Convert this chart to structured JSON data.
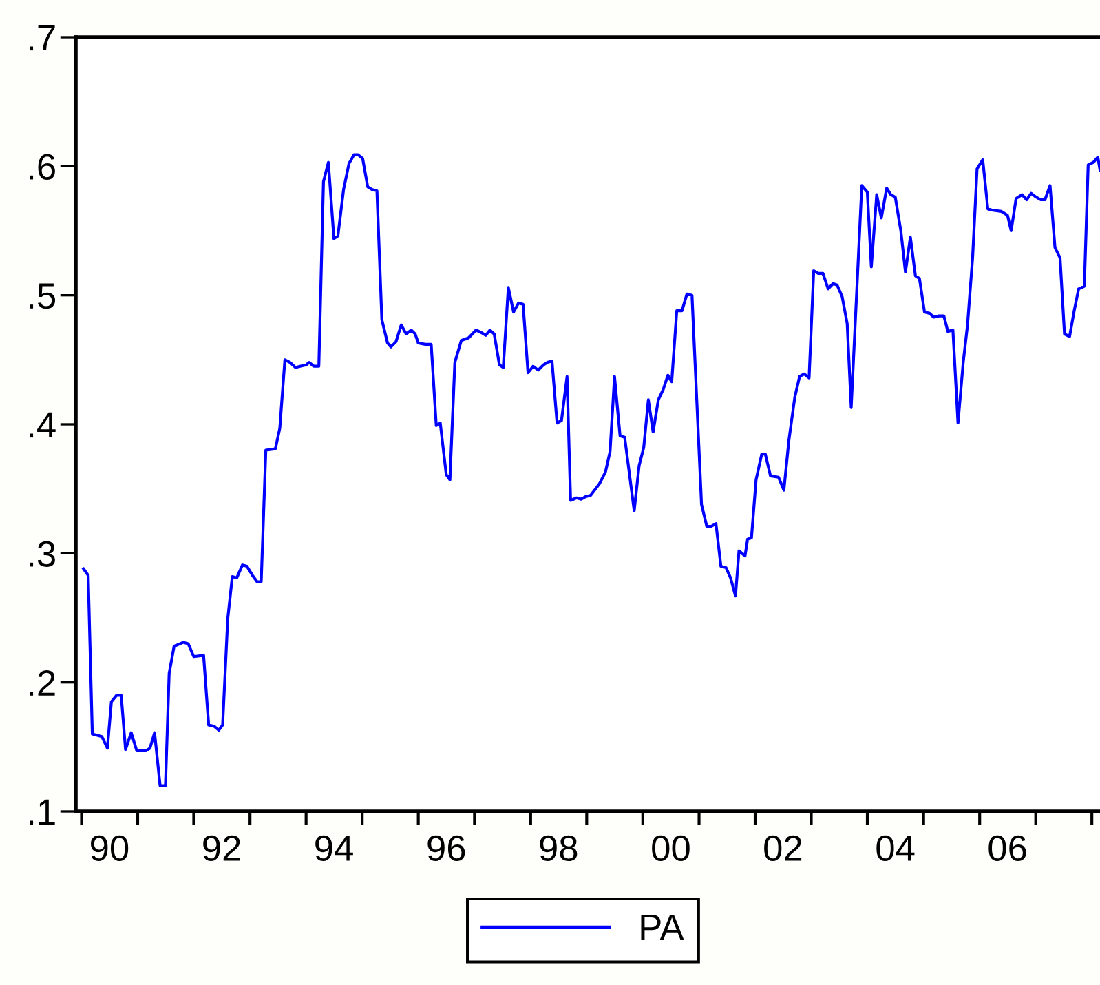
{
  "chart_data": {
    "type": "line",
    "x": [
      "1990-01-14",
      "1990-02-13",
      "1990-03-12",
      "1990-05-13",
      "1990-06-18",
      "1990-07-14",
      "1990-08-17",
      "1990-09-16",
      "1990-10-14",
      "1990-11-20",
      "1990-12-26",
      "1991-02-23",
      "1991-03-22",
      "1991-04-21",
      "1991-05-27",
      "1991-07-01",
      "1991-07-25",
      "1991-08-26",
      "1991-10-24",
      "1991-11-26",
      "1992-01-01",
      "1992-03-05",
      "1992-04-07",
      "1992-05-13",
      "1992-06-12",
      "1992-07-07",
      "1992-08-09",
      "1992-09-08",
      "1992-10-07",
      "1992-11-13",
      "1992-12-12",
      "1993-01-17",
      "1993-02-16",
      "1993-03-15",
      "1993-04-14",
      "1993-06-15",
      "1993-07-14",
      "1993-08-16",
      "1993-09-18",
      "1993-10-24",
      "1993-11-23",
      "1994-01-01",
      "1994-01-21",
      "1994-02-20",
      "1994-03-25",
      "1994-04-24",
      "1994-05-26",
      "1994-07-01",
      "1994-07-27",
      "1994-09-02",
      "1994-10-07",
      "1994-11-09",
      "1994-12-05",
      "1995-01-04",
      "1995-02-06",
      "1995-03-05",
      "1995-04-07",
      "1995-05-09",
      "1995-06-15",
      "1995-07-07",
      "1995-08-09",
      "1995-09-12",
      "1995-10-14",
      "1995-11-16",
      "1995-12-12",
      "1996-01-01",
      "1996-02-16",
      "1996-03-25",
      "1996-04-27",
      "1996-05-23",
      "1996-07-01",
      "1996-07-25",
      "1996-08-26",
      "1996-10-07",
      "1996-11-23",
      "1997-01-11",
      "1997-02-16",
      "1997-03-15",
      "1997-04-11",
      "1997-05-09",
      "1997-06-12",
      "1997-07-07",
      "1997-08-09",
      "1997-09-12",
      "1997-10-14",
      "1997-11-13",
      "1997-12-15",
      "1998-01-17",
      "1998-02-20",
      "1998-03-25",
      "1998-04-21",
      "1998-05-20",
      "1998-06-22",
      "1998-07-21",
      "1998-08-26",
      "1998-09-18",
      "1998-10-27",
      "1998-11-26",
      "1998-12-26",
      "1999-01-27",
      "1999-03-25",
      "1999-05-03",
      "1999-06-02",
      "1999-07-01",
      "1999-08-06",
      "1999-09-05",
      "1999-11-06",
      "1999-12-08",
      "2000-01-07",
      "2000-02-06",
      "2000-03-08",
      "2000-04-11",
      "2000-05-13",
      "2000-06-12",
      "2000-07-07",
      "2000-08-09",
      "2000-09-12",
      "2000-10-14",
      "2000-11-16",
      "2001-01-17",
      "2001-02-20",
      "2001-03-22",
      "2001-04-21",
      "2001-05-23",
      "2001-06-25",
      "2001-07-25",
      "2001-08-26",
      "2001-09-18",
      "2001-10-27",
      "2001-11-13",
      "2001-12-08",
      "2002-01-07",
      "2002-02-13",
      "2002-03-08",
      "2002-04-11",
      "2002-06-02",
      "2002-07-07",
      "2002-08-09",
      "2002-09-16",
      "2002-10-17",
      "2002-11-16",
      "2002-12-18",
      "2003-01-17",
      "2003-02-16",
      "2003-03-18",
      "2003-04-21",
      "2003-05-23",
      "2003-06-18",
      "2003-07-21",
      "2003-08-23",
      "2003-09-18",
      "2003-11-26",
      "2004-01-01",
      "2004-01-27",
      "2004-03-02",
      "2004-04-01",
      "2004-05-06",
      "2004-06-02",
      "2004-07-01",
      "2004-08-06",
      "2004-09-05",
      "2004-10-07",
      "2004-11-09",
      "2004-12-05",
      "2005-01-07",
      "2005-02-09",
      "2005-03-08",
      "2005-04-11",
      "2005-05-13",
      "2005-06-08",
      "2005-07-11",
      "2005-08-13",
      "2005-09-16",
      "2005-10-14",
      "2005-11-16",
      "2005-12-15",
      "2006-01-21",
      "2006-02-23",
      "2006-03-22",
      "2006-05-23",
      "2006-07-01",
      "2006-07-25",
      "2006-08-26",
      "2006-10-04",
      "2006-11-03",
      "2006-12-02",
      "2007-01-04",
      "2007-02-03",
      "2007-03-02",
      "2007-04-04",
      "2007-05-06",
      "2007-06-08",
      "2007-07-07",
      "2007-08-09",
      "2007-09-08",
      "2007-10-07",
      "2007-11-13",
      "2007-12-08",
      "2008-01-11",
      "2008-02-09",
      "2008-02-23"
    ],
    "series": [
      {
        "name": "PA",
        "color": "#0000ff",
        "values": [
          0.288,
          0.283,
          0.16,
          0.158,
          0.149,
          0.185,
          0.19,
          0.19,
          0.148,
          0.161,
          0.147,
          0.147,
          0.149,
          0.161,
          0.12,
          0.12,
          0.207,
          0.228,
          0.231,
          0.23,
          0.22,
          0.221,
          0.167,
          0.166,
          0.163,
          0.167,
          0.249,
          0.282,
          0.281,
          0.291,
          0.29,
          0.283,
          0.278,
          0.278,
          0.38,
          0.381,
          0.397,
          0.45,
          0.448,
          0.444,
          0.445,
          0.446,
          0.448,
          0.445,
          0.445,
          0.588,
          0.603,
          0.544,
          0.546,
          0.582,
          0.602,
          0.609,
          0.609,
          0.606,
          0.584,
          0.582,
          0.581,
          0.481,
          0.463,
          0.46,
          0.464,
          0.477,
          0.47,
          0.473,
          0.47,
          0.463,
          0.462,
          0.462,
          0.399,
          0.401,
          0.361,
          0.357,
          0.448,
          0.465,
          0.467,
          0.473,
          0.471,
          0.469,
          0.473,
          0.47,
          0.446,
          0.444,
          0.506,
          0.487,
          0.494,
          0.493,
          0.44,
          0.445,
          0.442,
          0.446,
          0.448,
          0.449,
          0.401,
          0.403,
          0.437,
          0.341,
          0.343,
          0.342,
          0.344,
          0.345,
          0.354,
          0.363,
          0.379,
          0.437,
          0.391,
          0.39,
          0.333,
          0.368,
          0.382,
          0.419,
          0.394,
          0.419,
          0.427,
          0.438,
          0.433,
          0.488,
          0.488,
          0.501,
          0.5,
          0.338,
          0.321,
          0.321,
          0.323,
          0.29,
          0.289,
          0.281,
          0.267,
          0.302,
          0.298,
          0.311,
          0.312,
          0.357,
          0.377,
          0.377,
          0.36,
          0.359,
          0.349,
          0.388,
          0.421,
          0.437,
          0.439,
          0.436,
          0.519,
          0.517,
          0.517,
          0.505,
          0.509,
          0.508,
          0.499,
          0.478,
          0.413,
          0.585,
          0.58,
          0.522,
          0.578,
          0.56,
          0.583,
          0.578,
          0.576,
          0.55,
          0.518,
          0.545,
          0.515,
          0.513,
          0.487,
          0.486,
          0.483,
          0.484,
          0.484,
          0.472,
          0.473,
          0.401,
          0.448,
          0.477,
          0.529,
          0.598,
          0.605,
          0.567,
          0.566,
          0.565,
          0.562,
          0.55,
          0.575,
          0.578,
          0.574,
          0.579,
          0.576,
          0.574,
          0.574,
          0.585,
          0.537,
          0.529,
          0.47,
          0.468,
          0.488,
          0.505,
          0.507,
          0.601,
          0.603,
          0.607,
          0.597
        ]
      }
    ],
    "xlim": [
      "1989-11-24",
      "2008-02-23"
    ],
    "xticks": [
      {
        "value": "1990-01-01",
        "label": null
      },
      {
        "value": "1991-01-01",
        "label": null
      },
      {
        "value": "1992-01-01",
        "label": null
      },
      {
        "value": "1993-01-01",
        "label": null
      },
      {
        "value": "1994-01-01",
        "label": null
      },
      {
        "value": "1995-01-01",
        "label": null
      },
      {
        "value": "1996-01-01",
        "label": null
      },
      {
        "value": "1997-01-01",
        "label": null
      },
      {
        "value": "1998-01-01",
        "label": null
      },
      {
        "value": "1999-01-01",
        "label": null
      },
      {
        "value": "2000-01-01",
        "label": null
      },
      {
        "value": "2001-01-01",
        "label": null
      },
      {
        "value": "2002-01-01",
        "label": null
      },
      {
        "value": "2003-01-01",
        "label": null
      },
      {
        "value": "2004-01-01",
        "label": null
      },
      {
        "value": "2005-01-01",
        "label": null
      },
      {
        "value": "2006-01-01",
        "label": null
      },
      {
        "value": "2007-01-01",
        "label": null
      },
      {
        "value": "2008-01-01",
        "label": null
      },
      {
        "value": "1990-07-01",
        "label": "90"
      },
      {
        "value": "1992-07-01",
        "label": "92"
      },
      {
        "value": "1994-07-01",
        "label": "94"
      },
      {
        "value": "1996-07-01",
        "label": "96"
      },
      {
        "value": "1998-07-01",
        "label": "98"
      },
      {
        "value": "2000-07-01",
        "label": "00"
      },
      {
        "value": "2002-07-01",
        "label": "02"
      },
      {
        "value": "2004-07-01",
        "label": "04"
      },
      {
        "value": "2006-07-01",
        "label": "06"
      }
    ],
    "ylim": [
      0.1,
      0.7
    ],
    "yticks": [
      {
        "value": 0.1,
        "label": ".1"
      },
      {
        "value": 0.2,
        "label": ".2"
      },
      {
        "value": 0.3,
        "label": ".3"
      },
      {
        "value": 0.4,
        "label": ".4"
      },
      {
        "value": 0.5,
        "label": ".5"
      },
      {
        "value": 0.6,
        "label": ".6"
      },
      {
        "value": 0.7,
        "label": ".7"
      }
    ],
    "grid": false,
    "legend": "bottom",
    "line_style": "solid",
    "marker": "none"
  }
}
